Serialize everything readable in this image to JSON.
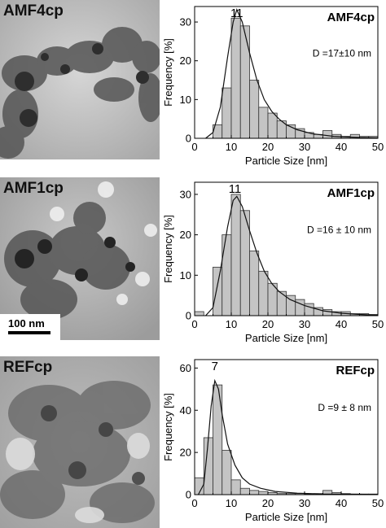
{
  "panels": [
    {
      "tem_label": "AMF4cp",
      "scale_bar": "",
      "chart_data": {
        "type": "bar",
        "title": "AMF4cp",
        "annotation": "D =17±10 nm",
        "peak_label": "11",
        "peak_x": 11.5,
        "xlabel": "Particle Size [nm]",
        "ylabel": "Frequency [%]",
        "xlim": [
          0,
          50
        ],
        "ylim": [
          0,
          34
        ],
        "xticks": [
          0,
          10,
          20,
          30,
          40,
          50
        ],
        "yticks": [
          0,
          10,
          20,
          30
        ],
        "bin_width": 2.5,
        "bins_start": [
          5,
          7.5,
          10,
          12.5,
          15,
          17.5,
          20,
          22.5,
          25,
          27.5,
          30,
          32.5,
          35,
          37.5,
          40,
          42.5,
          45,
          47.5
        ],
        "values": [
          3.5,
          13,
          31,
          29,
          15,
          8,
          6.5,
          4.5,
          3.5,
          2.5,
          1.5,
          1,
          2,
          1,
          0.5,
          1,
          0.5,
          0.5
        ],
        "fit_curve": [
          [
            3,
            0
          ],
          [
            5,
            1.5
          ],
          [
            7,
            8
          ],
          [
            9,
            21
          ],
          [
            10.5,
            30
          ],
          [
            11.5,
            33.2
          ],
          [
            13,
            30
          ],
          [
            15,
            22
          ],
          [
            17,
            15
          ],
          [
            19,
            10
          ],
          [
            21,
            7
          ],
          [
            23,
            5
          ],
          [
            25,
            3.5
          ],
          [
            28,
            2.2
          ],
          [
            32,
            1.2
          ],
          [
            38,
            0.5
          ],
          [
            45,
            0.2
          ],
          [
            50,
            0.1
          ]
        ]
      }
    },
    {
      "tem_label": "AMF1cp",
      "scale_bar": "100 nm",
      "chart_data": {
        "type": "bar",
        "title": "AMF1cp",
        "annotation": "D =16 ± 10 nm",
        "peak_label": "11",
        "peak_x": 11,
        "xlabel": "Particle Size [nm]",
        "ylabel": "Frequency [%]",
        "xlim": [
          0,
          50
        ],
        "ylim": [
          0,
          33
        ],
        "xticks": [
          0,
          10,
          20,
          30,
          40,
          50
        ],
        "yticks": [
          0,
          10,
          20,
          30
        ],
        "bin_width": 2.5,
        "bins_start": [
          0,
          5,
          7.5,
          10,
          12.5,
          15,
          17.5,
          20,
          22.5,
          25,
          27.5,
          30,
          32.5,
          35,
          37.5,
          40,
          42.5,
          45,
          47.5
        ],
        "values": [
          1,
          12,
          20,
          30,
          26,
          16,
          11,
          8,
          6,
          5,
          4,
          3,
          2,
          1.5,
          1,
          1,
          0.5,
          0.5,
          0.3
        ],
        "fit_curve": [
          [
            3,
            0
          ],
          [
            5,
            2
          ],
          [
            7,
            11
          ],
          [
            9,
            22
          ],
          [
            10.5,
            28.5
          ],
          [
            11.5,
            29.5
          ],
          [
            13,
            27
          ],
          [
            15,
            21
          ],
          [
            17,
            15.5
          ],
          [
            19,
            11
          ],
          [
            21,
            8
          ],
          [
            23,
            6
          ],
          [
            26,
            4
          ],
          [
            30,
            2.5
          ],
          [
            35,
            1.2
          ],
          [
            40,
            0.6
          ],
          [
            45,
            0.3
          ],
          [
            50,
            0.1
          ]
        ]
      }
    },
    {
      "tem_label": "REFcp",
      "scale_bar": "",
      "chart_data": {
        "type": "bar",
        "title": "REFcp",
        "annotation": "D =9 ± 8 nm",
        "peak_label": "7",
        "peak_x": 5.5,
        "xlabel": "Particle Size [nm]",
        "ylabel": "Frequency [%]",
        "xlim": [
          0,
          50
        ],
        "ylim": [
          0,
          64
        ],
        "xticks": [
          0,
          10,
          20,
          30,
          40,
          50
        ],
        "yticks": [
          0,
          20,
          40,
          60
        ],
        "bin_width": 2.5,
        "bins_start": [
          0,
          2.5,
          5,
          7.5,
          10,
          12.5,
          15,
          17.5,
          20,
          22.5,
          25,
          27.5,
          30,
          32.5,
          35,
          37.5,
          40,
          42.5,
          45,
          47.5
        ],
        "values": [
          8,
          27,
          52,
          21,
          7,
          3,
          2,
          1.5,
          1,
          0.5,
          0.5,
          0.5,
          0.3,
          0.5,
          2,
          1,
          0.5,
          0.3,
          0.3,
          0.3
        ],
        "fit_curve": [
          [
            1,
            0
          ],
          [
            2.5,
            5
          ],
          [
            3.5,
            22
          ],
          [
            4.5,
            42
          ],
          [
            5.5,
            54
          ],
          [
            6.5,
            50
          ],
          [
            7.5,
            38
          ],
          [
            9,
            24
          ],
          [
            11,
            14
          ],
          [
            13,
            8
          ],
          [
            15,
            5
          ],
          [
            18,
            3
          ],
          [
            22,
            1.5
          ],
          [
            28,
            0.7
          ],
          [
            35,
            0.3
          ],
          [
            50,
            0.1
          ]
        ]
      }
    }
  ]
}
